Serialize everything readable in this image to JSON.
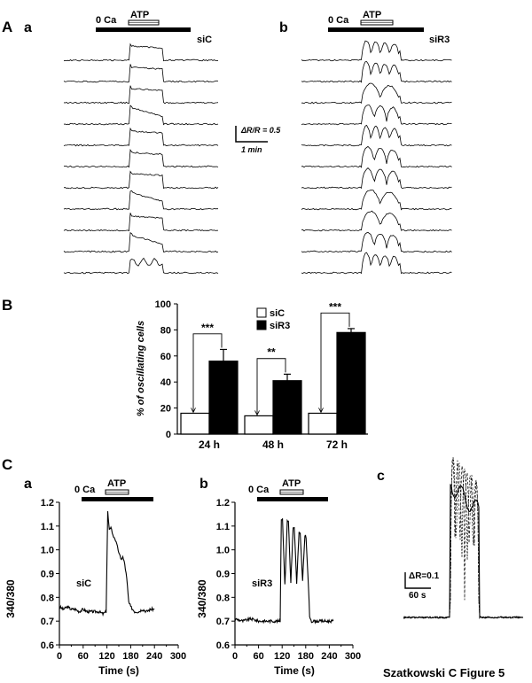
{
  "figure": {
    "caption": "Szatkowski C Figure 5",
    "panel_A": "A",
    "panel_B": "B",
    "panel_C": "C"
  },
  "chart_data": [
    {
      "id": "Aa",
      "type": "line",
      "sublabel": "a",
      "condition_label": "siC",
      "bar_label_ca": "0 Ca",
      "bar_label_atp": "ATP",
      "n_traces": 11,
      "scale_bar_y": "ΔR/R = 0.5",
      "scale_bar_x": "1 min",
      "trace_shapes": [
        "plateau",
        "plateau",
        "plateau",
        "decay",
        "plateau",
        "plateau",
        "plateau",
        "decay",
        "plateau",
        "decay",
        "oscillating"
      ]
    },
    {
      "id": "Ab",
      "type": "line",
      "sublabel": "b",
      "condition_label": "siR3",
      "bar_label_ca": "0 Ca",
      "bar_label_atp": "ATP",
      "n_traces": 11,
      "trace_peaks": [
        4,
        4,
        2,
        3,
        4,
        3,
        3,
        2,
        2,
        3,
        4
      ]
    },
    {
      "id": "B",
      "type": "bar",
      "ylabel": "% of oscillating cells",
      "ylim": [
        0,
        100
      ],
      "yticks": [
        0,
        20,
        40,
        60,
        80,
        100
      ],
      "categories": [
        "24 h",
        "48 h",
        "72 h"
      ],
      "series": [
        {
          "name": "siC",
          "values": [
            16,
            14,
            16
          ],
          "errors": [
            0,
            0,
            0
          ],
          "color": "#ffffff"
        },
        {
          "name": "siR3",
          "values": [
            56,
            41,
            78
          ],
          "errors": [
            9,
            5,
            3
          ],
          "color": "#000000"
        }
      ],
      "significance": [
        "***",
        "**",
        "***"
      ]
    },
    {
      "id": "Ca",
      "type": "line",
      "sublabel": "a",
      "condition_label": "siC",
      "bar_label_ca": "0 Ca",
      "bar_label_atp": "ATP",
      "xlabel": "Time (s)",
      "ylabel": "340/380",
      "xlim": [
        0,
        300
      ],
      "ylim": [
        0.6,
        1.2
      ],
      "xticks": [
        0,
        30,
        60,
        90,
        120,
        150,
        180,
        210,
        240,
        270,
        300
      ],
      "yticks": [
        0.6,
        0.7,
        0.8,
        0.9,
        1.0,
        1.1,
        1.2
      ],
      "x": [
        0,
        10,
        20,
        30,
        40,
        50,
        60,
        70,
        80,
        90,
        100,
        110,
        118,
        122,
        126,
        130,
        135,
        140,
        145,
        150,
        155,
        160,
        165,
        170,
        175,
        180,
        185,
        190,
        200,
        210,
        220,
        230,
        240
      ],
      "y": [
        0.76,
        0.75,
        0.76,
        0.75,
        0.75,
        0.74,
        0.75,
        0.74,
        0.74,
        0.74,
        0.74,
        0.73,
        0.74,
        1.16,
        1.08,
        1.1,
        1.06,
        1.05,
        1.02,
        0.99,
        0.96,
        0.97,
        0.94,
        0.88,
        0.78,
        0.76,
        0.75,
        0.74,
        0.74,
        0.75,
        0.74,
        0.75,
        0.75
      ]
    },
    {
      "id": "Cb",
      "type": "line",
      "sublabel": "b",
      "condition_label": "siR3",
      "bar_label_ca": "0 Ca",
      "bar_label_atp": "ATP",
      "xlabel": "Time (s)",
      "ylabel": "340/380",
      "xlim": [
        0,
        300
      ],
      "ylim": [
        0.6,
        1.2
      ],
      "xticks": [
        0,
        30,
        60,
        90,
        120,
        150,
        180,
        210,
        240,
        270,
        300
      ],
      "yticks": [
        0.6,
        0.7,
        0.8,
        0.9,
        1.0,
        1.1,
        1.2
      ],
      "x": [
        0,
        20,
        40,
        60,
        80,
        100,
        115,
        118,
        121,
        127,
        133,
        136,
        142,
        148,
        151,
        157,
        163,
        166,
        172,
        178,
        181,
        187,
        190,
        195,
        210,
        230,
        250
      ],
      "y": [
        0.71,
        0.7,
        0.71,
        0.7,
        0.7,
        0.7,
        0.7,
        1.13,
        1.13,
        0.85,
        1.12,
        1.12,
        0.86,
        1.09,
        1.09,
        0.86,
        1.07,
        1.07,
        0.87,
        1.06,
        1.05,
        0.84,
        0.72,
        0.7,
        0.7,
        0.7,
        0.7
      ]
    },
    {
      "id": "Cc",
      "type": "line",
      "sublabel": "c",
      "scale_bar_y": "ΔR=0.1",
      "scale_bar_x": "60 s"
    }
  ]
}
